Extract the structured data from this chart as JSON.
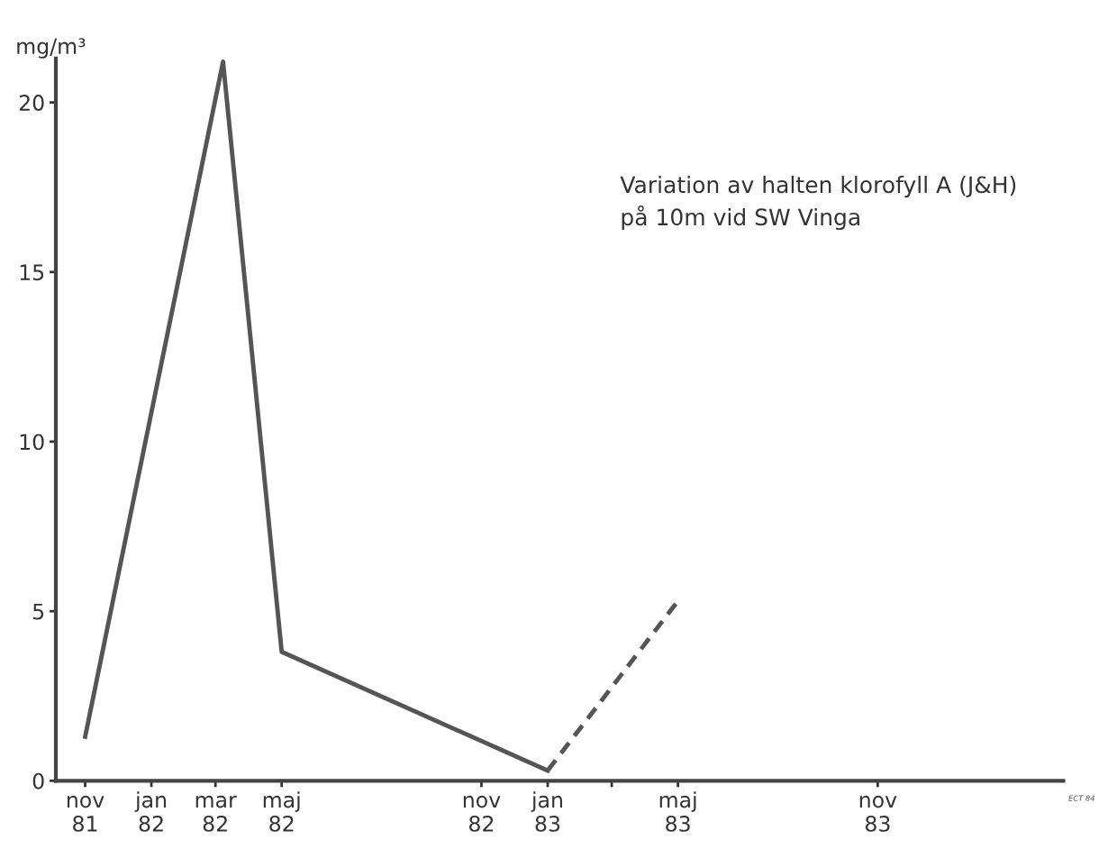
{
  "chart_data": {
    "type": "line",
    "title": "Variation av halten klorofyll A (J&H)\npå 10m vid SW Vinga",
    "ylabel": "mg/m³",
    "xlim": [
      "1981-10-05",
      "1984-04-20"
    ],
    "xticks": [
      {
        "value": "1981-11",
        "label": "nov\n81"
      },
      {
        "value": "1982-01",
        "label": "jan\n82"
      },
      {
        "value": "1982-03",
        "label": "mar\n82"
      },
      {
        "value": "1982-05",
        "label": "maj\n82"
      },
      {
        "value": "1982-11",
        "label": "nov\n82"
      },
      {
        "value": "1983-01",
        "label": "jan\n83"
      },
      {
        "value": "1983-03",
        "label": null
      },
      {
        "value": "1983-05",
        "label": "maj\n83"
      },
      {
        "value": "1983-11",
        "label": "nov\n83"
      }
    ],
    "ylim": [
      0,
      21.3
    ],
    "yticks": [
      0,
      5,
      10,
      15,
      20
    ],
    "grid": false,
    "marker": "none",
    "series": [
      {
        "color": "#555555",
        "line_style": "solid",
        "x": [
          "1981-11",
          "1982-03-08",
          "1982-05",
          "1983-01"
        ],
        "values": [
          1.3,
          21.2,
          3.8,
          0.3
        ]
      },
      {
        "color": "#555555",
        "line_style": "dashed",
        "x": [
          "1983-01",
          "1983-05"
        ],
        "values": [
          0.3,
          5.3
        ]
      }
    ],
    "annotations": [
      "ECT 84"
    ]
  }
}
